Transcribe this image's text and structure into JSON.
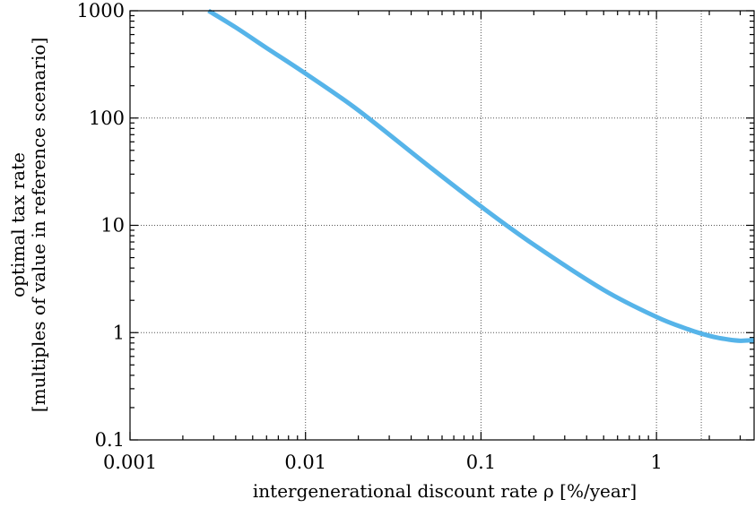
{
  "chart_data": {
    "type": "line",
    "xscale": "log",
    "yscale": "log",
    "xlim": [
      0.001,
      3.6
    ],
    "ylim": [
      0.1,
      1000
    ],
    "xticks": [
      0.001,
      0.01,
      0.1,
      1
    ],
    "xtick_labels": [
      "0.001",
      "0.01",
      "0.1",
      "1"
    ],
    "yticks": [
      0.1,
      1,
      10,
      100,
      1000
    ],
    "ytick_labels": [
      "0.1",
      "1",
      "10",
      "100",
      "1000"
    ],
    "xlabel": "intergenerational discount rate ρ [%/year]",
    "ylabel_line1": "optimal tax rate",
    "ylabel_line2": "[multiples of value in reference scenario]",
    "grid": "major",
    "reference_line_x": 1.8,
    "line_color": "#56B4E9",
    "series": [
      {
        "x": [
          0.0028,
          0.004,
          0.006,
          0.01,
          0.02,
          0.05,
          0.1,
          0.2,
          0.5,
          1.0,
          1.5,
          1.8,
          2.2,
          2.6,
          3.0,
          3.3,
          3.6
        ],
        "values": [
          1000,
          700,
          450,
          260,
          118,
          36,
          15,
          6.6,
          2.5,
          1.4,
          1.08,
          0.98,
          0.9,
          0.86,
          0.84,
          0.845,
          0.85
        ]
      }
    ]
  }
}
